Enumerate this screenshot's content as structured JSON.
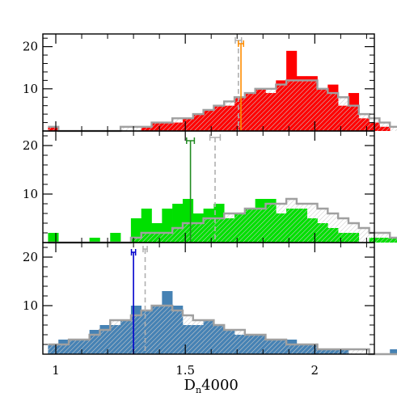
{
  "chart_data": {
    "type": "histogram",
    "xlabel": "D_n4000",
    "xlabel_main": "D",
    "xlabel_sub": "n",
    "xlabel_tail": "4000",
    "xlim": [
      0.95,
      2.23
    ],
    "bin_start": 0.97,
    "bin_width": 0.04,
    "x_ticks": [
      1,
      1.5,
      2
    ],
    "x_tick_labels": [
      "1",
      "1.5",
      "2"
    ],
    "panels": [
      {
        "ylim": [
          0,
          23
        ],
        "y_ticks": [
          10,
          20
        ],
        "y_tick_labels": [
          "10",
          "20"
        ],
        "fill_color": "#ff0000",
        "marker_color": "#ff8c00",
        "counts": [
          1,
          0,
          0,
          0,
          0,
          0,
          0,
          0,
          0,
          1,
          2,
          2,
          2,
          3,
          4,
          5,
          6,
          6,
          8,
          9,
          10,
          9,
          12,
          19,
          13,
          13,
          10,
          11,
          6,
          9,
          3,
          2,
          1,
          0,
          1,
          1,
          0,
          0,
          0,
          0
        ],
        "reference": [
          1,
          0,
          0,
          0,
          0,
          0,
          0,
          1,
          1,
          1,
          2,
          2,
          3,
          3,
          4,
          5,
          6,
          7,
          8,
          9,
          10,
          10,
          11,
          12,
          12,
          12,
          10,
          9,
          8,
          6,
          4,
          3,
          2,
          1,
          1,
          0,
          0,
          0,
          0,
          0
        ],
        "marker_value": 1.715,
        "marker_error": 0.01,
        "reference_marker_value": 1.705,
        "reference_marker_error": 0.012
      },
      {
        "ylim": [
          0,
          23
        ],
        "y_ticks": [
          10,
          20
        ],
        "y_tick_labels": [
          "10",
          "20"
        ],
        "fill_color": "#00e000",
        "marker_color": "#228b22",
        "counts": [
          2,
          0,
          0,
          0,
          1,
          0,
          2,
          0,
          5,
          7,
          4,
          7,
          8,
          9,
          6,
          7,
          8,
          5,
          6,
          7,
          9,
          9,
          6,
          7,
          7,
          5,
          4,
          3,
          2,
          2,
          0,
          1,
          1,
          1,
          1,
          0,
          1,
          0,
          0,
          0
        ],
        "reference": [
          0,
          0,
          0,
          0,
          0,
          0,
          0,
          0,
          1,
          2,
          2,
          2,
          3,
          4,
          4,
          5,
          5,
          6,
          6,
          7,
          7,
          8,
          8,
          9,
          8,
          8,
          7,
          6,
          5,
          4,
          3,
          2,
          2,
          1,
          1,
          1,
          0,
          0,
          0,
          0
        ],
        "marker_value": 1.52,
        "marker_error": 0.015,
        "reference_marker_value": 1.615,
        "reference_marker_error": 0.02
      },
      {
        "ylim": [
          0,
          23
        ],
        "y_ticks": [
          10,
          20
        ],
        "y_tick_labels": [
          "10",
          "20"
        ],
        "fill_color": "#4682b4",
        "marker_color": "#0000cd",
        "counts": [
          2,
          3,
          3,
          3,
          5,
          6,
          6,
          7,
          10,
          9,
          10,
          13,
          10,
          6,
          6,
          7,
          6,
          5,
          4,
          4,
          4,
          3,
          3,
          3,
          2,
          2,
          1,
          1,
          1,
          0,
          0,
          0,
          0,
          1,
          0,
          0,
          0,
          0,
          0,
          1
        ],
        "reference": [
          2,
          2,
          3,
          3,
          4,
          5,
          7,
          7,
          8,
          9,
          10,
          10,
          9,
          8,
          7,
          7,
          6,
          5,
          5,
          4,
          4,
          3,
          3,
          2,
          2,
          2,
          1,
          1,
          1,
          1,
          1,
          0,
          0,
          0,
          0,
          0,
          0,
          0,
          0,
          0
        ],
        "marker_value": 1.3,
        "marker_error": 0.008,
        "reference_marker_value": 1.345,
        "reference_marker_error": 0.008
      }
    ]
  }
}
